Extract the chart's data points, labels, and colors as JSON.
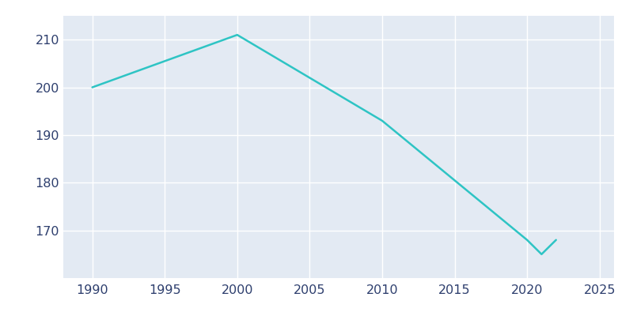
{
  "years": [
    1990,
    2000,
    2010,
    2020,
    2021,
    2022
  ],
  "population": [
    200,
    211,
    193,
    168,
    165,
    168
  ],
  "line_color": "#2EC4C4",
  "bg_color": "#E3EAF3",
  "fig_bg_color": "#FFFFFF",
  "grid_color": "#FFFFFF",
  "xlabel": "",
  "ylabel": "",
  "xlim": [
    1988,
    2026
  ],
  "ylim": [
    160,
    215
  ],
  "yticks": [
    170,
    180,
    190,
    200,
    210
  ],
  "xticks": [
    1990,
    1995,
    2000,
    2005,
    2010,
    2015,
    2020,
    2025
  ],
  "linewidth": 1.8,
  "tick_label_color": "#2E3F6E",
  "tick_label_size": 11.5
}
